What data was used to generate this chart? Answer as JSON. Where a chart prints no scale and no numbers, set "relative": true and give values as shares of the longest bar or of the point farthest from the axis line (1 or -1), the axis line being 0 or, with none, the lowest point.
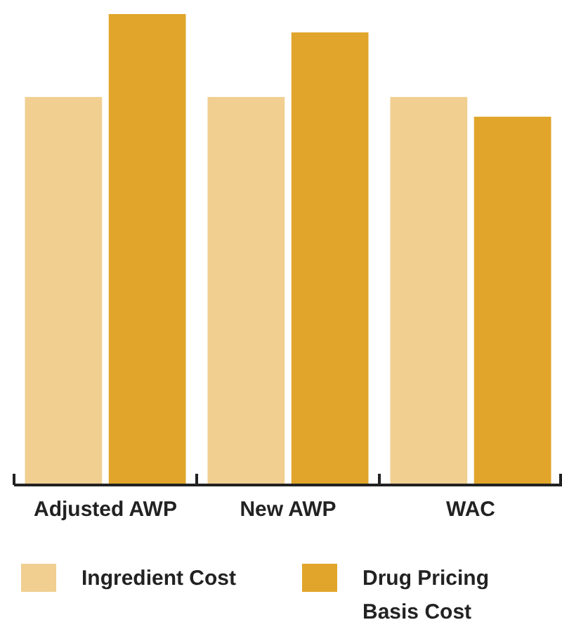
{
  "chart_data": {
    "type": "bar",
    "relative": true,
    "categories": [
      "Adjusted AWP",
      "New AWP",
      "WAC"
    ],
    "series": [
      {
        "name": "Ingredient Cost",
        "color": "#f0cf91",
        "values": [
          0.824,
          0.824,
          0.824
        ]
      },
      {
        "name": "Drug Pricing Basis Cost",
        "color": "#e0a52a",
        "values": [
          1,
          0.961,
          0.782
        ]
      }
    ],
    "legend": "bottom"
  }
}
